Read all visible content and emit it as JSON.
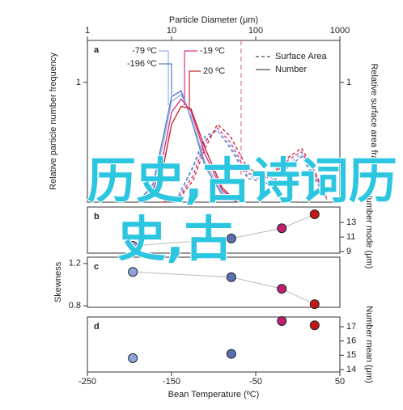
{
  "chart_data": [
    {
      "type": "line",
      "panel_label": "a",
      "xlabel": "Particle Diameter (μm)",
      "ylabel": "Relative particle number frequency",
      "y2label": "Relative surface area fraction",
      "xlog": true,
      "xlim": [
        1,
        1000
      ],
      "xticks": [
        1,
        10,
        100,
        1000
      ],
      "ylim": [
        0,
        1.35
      ],
      "yticks": [
        1
      ],
      "y2lim": [
        0,
        1.35
      ],
      "y2ticks": [
        1
      ],
      "legend": [
        {
          "label": "Surface Area",
          "dashed": true
        },
        {
          "label": "Number",
          "dashed": false
        }
      ],
      "vline_x": 67,
      "vline_color": "#e87aa8",
      "x": [
        4,
        6,
        8,
        10,
        13,
        17,
        25,
        40,
        60
      ],
      "series": [
        {
          "name": "-196 ºC",
          "color": "#5b7fc4",
          "values": [
            0,
            0.15,
            0.55,
            0.88,
            0.93,
            0.7,
            0.3,
            0.06,
            0
          ]
        },
        {
          "name": "-79 ºC",
          "color": "#93b3e3",
          "values": [
            0,
            0.12,
            0.5,
            0.84,
            0.9,
            0.72,
            0.33,
            0.08,
            0
          ]
        },
        {
          "name": "-19 ºC",
          "color": "#d3358c",
          "values": [
            0,
            0.08,
            0.4,
            0.75,
            0.86,
            0.76,
            0.4,
            0.1,
            0
          ]
        },
        {
          "name": "20 ºC",
          "color": "#c42a30",
          "values": [
            0,
            0.05,
            0.3,
            0.65,
            0.8,
            0.78,
            0.45,
            0.12,
            0
          ]
        }
      ],
      "x2": [
        8,
        12,
        18,
        25,
        35,
        50,
        80,
        150,
        250,
        350,
        500,
        700
      ],
      "surface_series": [
        {
          "color": "#5b7fc4",
          "axis": "y2",
          "values": [
            0,
            0.05,
            0.3,
            0.55,
            0.6,
            0.45,
            0.2,
            0.15,
            0.3,
            0.38,
            0.2,
            0.02
          ]
        },
        {
          "color": "#93b3e3",
          "axis": "y2",
          "values": [
            0,
            0.04,
            0.28,
            0.52,
            0.6,
            0.47,
            0.22,
            0.17,
            0.33,
            0.4,
            0.22,
            0.02
          ]
        },
        {
          "color": "#d3358c",
          "axis": "y2",
          "values": [
            0,
            0.03,
            0.22,
            0.5,
            0.62,
            0.5,
            0.24,
            0.2,
            0.36,
            0.42,
            0.24,
            0.03
          ]
        },
        {
          "color": "#c42a30",
          "axis": "y2",
          "values": [
            0,
            0.02,
            0.18,
            0.45,
            0.65,
            0.55,
            0.28,
            0.22,
            0.38,
            0.45,
            0.26,
            0.03
          ]
        }
      ]
    },
    {
      "type": "scatter",
      "panel_label": "b",
      "y2label": "Number mode (μm)",
      "connect": true,
      "x": [
        -196,
        -79,
        -19,
        20
      ],
      "colors": [
        "#8ea5dc",
        "#5a6fb5",
        "#c02070",
        "#c41818"
      ],
      "y2lim": [
        8.8,
        15.1
      ],
      "y2ticks": [
        9,
        11,
        13
      ],
      "values": [
        9.8,
        10.8,
        12.2,
        14.1
      ]
    },
    {
      "type": "scatter",
      "panel_label": "c",
      "ylabel": "Skewness",
      "connect": true,
      "x": [
        -196,
        -79,
        -19,
        20
      ],
      "colors": [
        "#8ea5dc",
        "#5a6fb5",
        "#c02070",
        "#c41818"
      ],
      "ylim": [
        0.785,
        1.26
      ],
      "yticks": [
        0.8,
        1.2
      ],
      "values": [
        1.12,
        1.07,
        0.96,
        0.815
      ]
    },
    {
      "type": "scatter",
      "panel_label": "d",
      "y2label": "Number mean (μm)",
      "connect": false,
      "xlabel": "Bean Temperature (ºC)",
      "x": [
        -196,
        -79,
        -19,
        20
      ],
      "colors": [
        "#8ea5dc",
        "#5a6fb5",
        "#c02070",
        "#c41818"
      ],
      "xlim": [
        -250,
        50
      ],
      "xticks": [
        -250,
        -150,
        -50,
        50
      ],
      "y2lim": [
        13.83,
        17.68
      ],
      "y2ticks": [
        14,
        15,
        16,
        17
      ],
      "values": [
        14.8,
        15.1,
        17.4,
        17.1
      ]
    }
  ],
  "watermark": [
    "历史,古诗词历",
    "史,古"
  ]
}
